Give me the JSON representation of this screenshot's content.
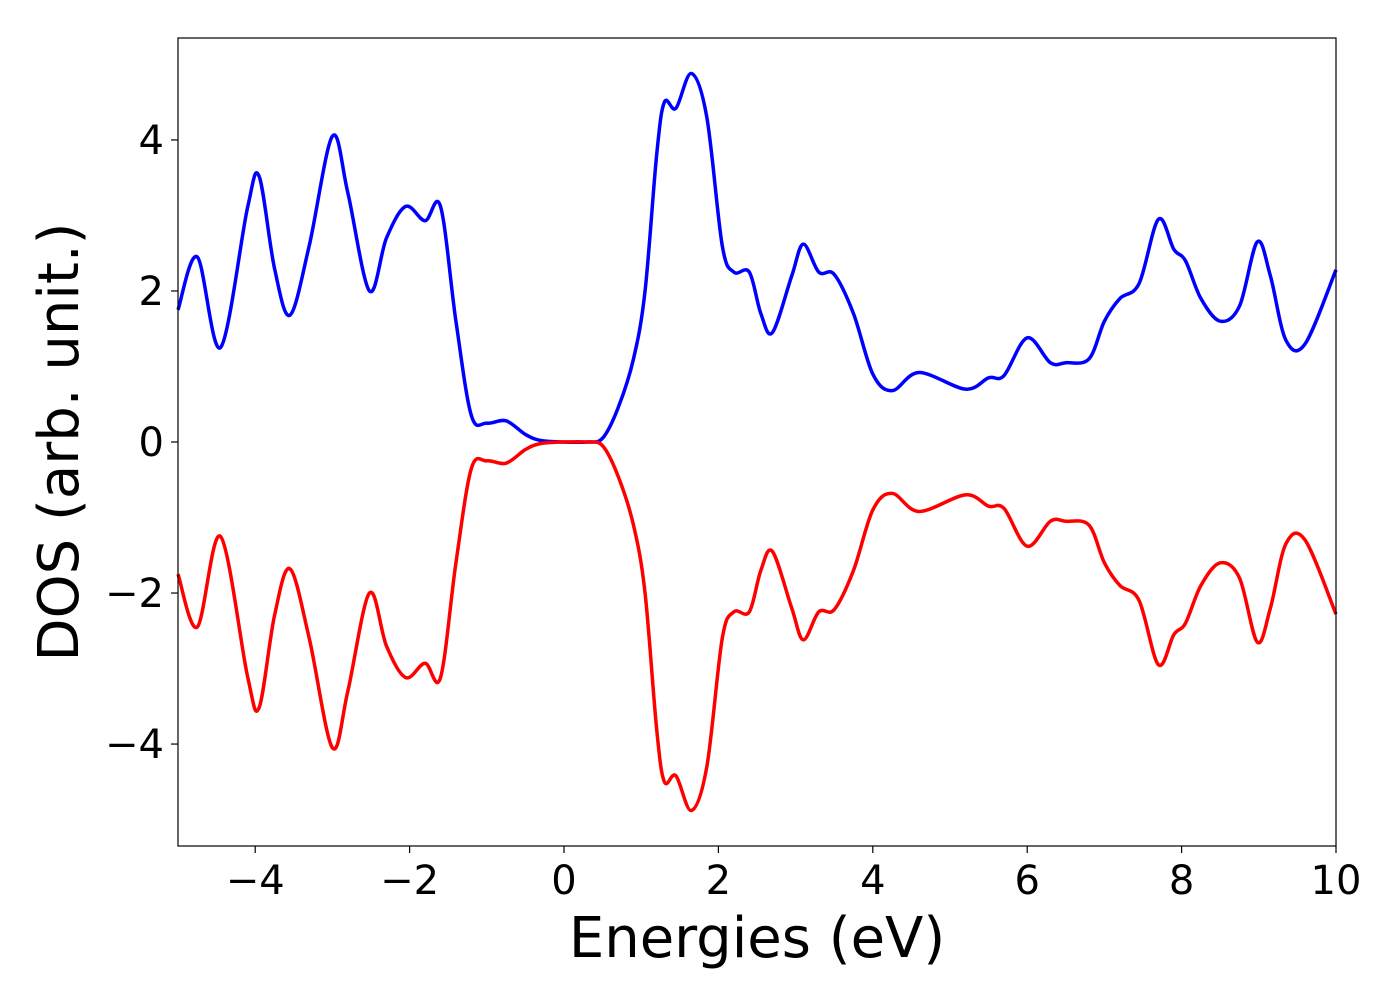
{
  "chart_data": {
    "type": "line",
    "title": "",
    "xlabel": "Energies (eV)",
    "ylabel": "DOS (arb. unit.)",
    "xlim": [
      -5,
      10
    ],
    "ylim": [
      -5.35,
      5.35
    ],
    "x_ticks": [
      -4,
      -2,
      0,
      2,
      4,
      6,
      8,
      10
    ],
    "x_tick_labels": [
      "−4",
      "−2",
      "0",
      "2",
      "4",
      "6",
      "8",
      "10"
    ],
    "y_ticks": [
      -4,
      -2,
      0,
      2,
      4
    ],
    "y_tick_labels": [
      "−4",
      "−2",
      "0",
      "2",
      "4"
    ],
    "grid": false,
    "legend": "none",
    "series": [
      {
        "color": "#0000ff",
        "points": [
          [
            -5.0,
            1.75
          ],
          [
            -4.75,
            2.45
          ],
          [
            -4.45,
            1.25
          ],
          [
            -4.1,
            3.1
          ],
          [
            -3.95,
            3.52
          ],
          [
            -3.75,
            2.3
          ],
          [
            -3.55,
            1.68
          ],
          [
            -3.3,
            2.6
          ],
          [
            -3.0,
            4.05
          ],
          [
            -2.8,
            3.3
          ],
          [
            -2.52,
            2.0
          ],
          [
            -2.3,
            2.7
          ],
          [
            -2.05,
            3.12
          ],
          [
            -1.8,
            2.93
          ],
          [
            -1.6,
            3.12
          ],
          [
            -1.4,
            1.6
          ],
          [
            -1.2,
            0.35
          ],
          [
            -1.0,
            0.25
          ],
          [
            -0.75,
            0.28
          ],
          [
            -0.5,
            0.1
          ],
          [
            -0.3,
            0.02
          ],
          [
            0.0,
            0.0
          ],
          [
            0.3,
            0.0
          ],
          [
            0.5,
            0.05
          ],
          [
            0.7,
            0.45
          ],
          [
            0.9,
            1.1
          ],
          [
            1.05,
            2.0
          ],
          [
            1.2,
            3.8
          ],
          [
            1.3,
            4.5
          ],
          [
            1.45,
            4.42
          ],
          [
            1.65,
            4.88
          ],
          [
            1.85,
            4.3
          ],
          [
            2.05,
            2.6
          ],
          [
            2.2,
            2.25
          ],
          [
            2.4,
            2.25
          ],
          [
            2.55,
            1.7
          ],
          [
            2.7,
            1.45
          ],
          [
            2.95,
            2.2
          ],
          [
            3.1,
            2.62
          ],
          [
            3.3,
            2.25
          ],
          [
            3.5,
            2.22
          ],
          [
            3.75,
            1.7
          ],
          [
            4.0,
            0.9
          ],
          [
            4.25,
            0.68
          ],
          [
            4.6,
            0.92
          ],
          [
            5.2,
            0.7
          ],
          [
            5.5,
            0.85
          ],
          [
            5.7,
            0.88
          ],
          [
            6.0,
            1.38
          ],
          [
            6.3,
            1.05
          ],
          [
            6.5,
            1.05
          ],
          [
            6.8,
            1.1
          ],
          [
            7.0,
            1.6
          ],
          [
            7.2,
            1.9
          ],
          [
            7.45,
            2.1
          ],
          [
            7.7,
            2.95
          ],
          [
            7.9,
            2.55
          ],
          [
            8.05,
            2.4
          ],
          [
            8.25,
            1.9
          ],
          [
            8.5,
            1.6
          ],
          [
            8.75,
            1.8
          ],
          [
            8.98,
            2.65
          ],
          [
            9.15,
            2.2
          ],
          [
            9.35,
            1.35
          ],
          [
            9.6,
            1.3
          ],
          [
            10.0,
            2.28
          ]
        ]
      },
      {
        "color": "#ff0000",
        "points": [
          [
            -5.0,
            -1.75
          ],
          [
            -4.75,
            -2.45
          ],
          [
            -4.45,
            -1.25
          ],
          [
            -4.1,
            -3.1
          ],
          [
            -3.95,
            -3.52
          ],
          [
            -3.75,
            -2.3
          ],
          [
            -3.55,
            -1.68
          ],
          [
            -3.3,
            -2.6
          ],
          [
            -3.0,
            -4.05
          ],
          [
            -2.8,
            -3.3
          ],
          [
            -2.52,
            -2.0
          ],
          [
            -2.3,
            -2.7
          ],
          [
            -2.05,
            -3.12
          ],
          [
            -1.8,
            -2.93
          ],
          [
            -1.6,
            -3.12
          ],
          [
            -1.4,
            -1.6
          ],
          [
            -1.2,
            -0.35
          ],
          [
            -1.0,
            -0.25
          ],
          [
            -0.75,
            -0.28
          ],
          [
            -0.5,
            -0.1
          ],
          [
            -0.3,
            -0.02
          ],
          [
            0.0,
            0.0
          ],
          [
            0.3,
            0.0
          ],
          [
            0.5,
            -0.05
          ],
          [
            0.7,
            -0.45
          ],
          [
            0.9,
            -1.1
          ],
          [
            1.05,
            -2.0
          ],
          [
            1.2,
            -3.8
          ],
          [
            1.3,
            -4.5
          ],
          [
            1.45,
            -4.42
          ],
          [
            1.65,
            -4.88
          ],
          [
            1.85,
            -4.3
          ],
          [
            2.05,
            -2.6
          ],
          [
            2.2,
            -2.25
          ],
          [
            2.4,
            -2.25
          ],
          [
            2.55,
            -1.7
          ],
          [
            2.7,
            -1.45
          ],
          [
            2.95,
            -2.2
          ],
          [
            3.1,
            -2.62
          ],
          [
            3.3,
            -2.25
          ],
          [
            3.5,
            -2.22
          ],
          [
            3.75,
            -1.7
          ],
          [
            4.0,
            -0.9
          ],
          [
            4.25,
            -0.68
          ],
          [
            4.6,
            -0.92
          ],
          [
            5.2,
            -0.7
          ],
          [
            5.5,
            -0.85
          ],
          [
            5.7,
            -0.88
          ],
          [
            6.0,
            -1.38
          ],
          [
            6.3,
            -1.05
          ],
          [
            6.5,
            -1.05
          ],
          [
            6.8,
            -1.1
          ],
          [
            7.0,
            -1.6
          ],
          [
            7.2,
            -1.9
          ],
          [
            7.45,
            -2.1
          ],
          [
            7.7,
            -2.95
          ],
          [
            7.9,
            -2.55
          ],
          [
            8.05,
            -2.4
          ],
          [
            8.25,
            -1.9
          ],
          [
            8.5,
            -1.6
          ],
          [
            8.75,
            -1.8
          ],
          [
            8.98,
            -2.65
          ],
          [
            9.15,
            -2.2
          ],
          [
            9.35,
            -1.35
          ],
          [
            9.6,
            -1.3
          ],
          [
            10.0,
            -2.28
          ]
        ]
      }
    ]
  }
}
